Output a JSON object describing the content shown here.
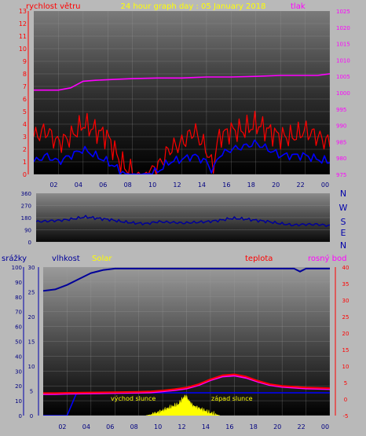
{
  "header": {
    "title": "24 hour graph day : 05 January 2018",
    "left_label": "rychlost větru",
    "right_label": "tlak"
  },
  "panel2": {
    "compass": [
      "N",
      "W",
      "S",
      "E",
      "N"
    ]
  },
  "panel3": {
    "labels": {
      "rain": "srážky",
      "humidity": "vlhkost",
      "solar": "Solar",
      "temperature": "teplota",
      "dewpoint": "rosný bod"
    },
    "sunrise_label": "východ slunce",
    "sunset_label": "západ slunce"
  },
  "colors": {
    "wind": "#ff0000",
    "wind_avg": "#0000ff",
    "pressure": "#ff00ff",
    "direction": "#000099",
    "humidity": "#000099",
    "rain": "#0000ff",
    "solar": "#ffff00",
    "temperature": "#ff0000",
    "dewpoint": "#ff00ff",
    "title": "#ffff00"
  },
  "chart_data": [
    {
      "type": "line",
      "name": "wind & pressure",
      "x_ticks": [
        "02",
        "04",
        "06",
        "08",
        "10",
        "12",
        "14",
        "16",
        "18",
        "20",
        "22",
        "00"
      ],
      "y_left": {
        "ticks": [
          "0",
          "1",
          "2",
          "3",
          "4",
          "5",
          "6",
          "7",
          "8",
          "9",
          "10",
          "11",
          "12",
          "13"
        ],
        "ylim": [
          0,
          13
        ]
      },
      "y_right": {
        "ticks": [
          "975",
          "980",
          "985",
          "990",
          "995",
          "1000",
          "1005",
          "1010",
          "1015",
          "1020",
          "1025"
        ],
        "ylim": [
          975,
          1025
        ]
      },
      "series": [
        {
          "x": [
            0,
            1,
            2,
            3,
            4,
            5,
            6,
            7,
            7.5,
            8,
            9,
            10,
            11,
            12,
            13,
            14,
            14.5,
            15,
            16,
            17,
            18,
            19,
            20,
            21,
            22,
            23,
            24
          ],
          "values": [
            3,
            3.5,
            2.5,
            3,
            4,
            3.5,
            3,
            1,
            0.5,
            0,
            0,
            0.5,
            2,
            2.5,
            3.5,
            2,
            0.5,
            3,
            3.5,
            3.5,
            4,
            3.5,
            3,
            3,
            3.5,
            3,
            2.5
          ]
        },
        {
          "x": [
            0,
            1,
            2,
            3,
            4,
            5,
            6,
            7,
            7.5,
            8,
            9,
            10,
            11,
            12,
            13,
            14,
            14.5,
            15,
            16,
            17,
            18,
            19,
            20,
            21,
            22,
            23,
            24
          ],
          "values": [
            1,
            1.5,
            1,
            1.5,
            2,
            1.5,
            1,
            0.3,
            0,
            0,
            0,
            0.2,
            1,
            1.2,
            1.5,
            1,
            0.2,
            1.5,
            2,
            2.2,
            2.5,
            2,
            1.5,
            1.5,
            1.5,
            1.2,
            1
          ]
        },
        {
          "x": [
            0,
            1,
            2,
            3,
            4,
            5,
            6,
            8,
            10,
            12,
            14,
            16,
            18,
            20,
            22,
            23,
            24
          ],
          "values": [
            1000.8,
            1000.8,
            1000.8,
            1001.5,
            1003.5,
            1003.8,
            1004,
            1004.3,
            1004.5,
            1004.5,
            1004.8,
            1004.8,
            1005,
            1005.3,
            1005.3,
            1005.3,
            1005.8
          ]
        }
      ]
    },
    {
      "type": "line",
      "name": "wind direction",
      "y_ticks": [
        "360",
        "270",
        "180",
        "90",
        "0"
      ],
      "ylim": [
        0,
        360
      ],
      "x": [
        0,
        1,
        2,
        3,
        4,
        5,
        6,
        7,
        8,
        9,
        10,
        11,
        12,
        13,
        14,
        15,
        16,
        17,
        18,
        19,
        20,
        21,
        22,
        23,
        24
      ],
      "values": [
        150,
        155,
        160,
        170,
        185,
        175,
        165,
        150,
        140,
        135,
        150,
        145,
        140,
        145,
        150,
        160,
        175,
        170,
        160,
        150,
        135,
        125,
        130,
        130,
        120
      ]
    },
    {
      "type": "line",
      "name": "humidity, rain, solar, temperature",
      "y_left": {
        "ticks": [
          "0",
          "10",
          "20",
          "30",
          "40",
          "50",
          "60",
          "70",
          "80",
          "90",
          "100"
        ],
        "ylim": [
          0,
          100
        ]
      },
      "y_mid": {
        "ticks": [
          "0",
          "5",
          "10",
          "15",
          "20",
          "25",
          "30"
        ],
        "ylim": [
          0,
          30
        ]
      },
      "y_right": {
        "ticks": [
          "-5",
          "0",
          "5",
          "10",
          "15",
          "20",
          "25",
          "30",
          "35",
          "40"
        ],
        "ylim": [
          -5,
          40
        ]
      },
      "series": [
        {
          "x": [
            0,
            1,
            2,
            3,
            4,
            5,
            6,
            7,
            8,
            10,
            12,
            14,
            16,
            18,
            20,
            21,
            21.5,
            22,
            24
          ],
          "values": [
            84,
            85,
            88,
            92,
            96,
            98,
            99,
            99,
            99,
            99,
            99,
            99,
            99,
            99,
            99,
            99,
            97,
            99,
            99
          ]
        },
        {
          "x": [
            0,
            1,
            2,
            4,
            6,
            8,
            9,
            10,
            11,
            12,
            13,
            14,
            15,
            16,
            17,
            18,
            19,
            20,
            22,
            24
          ],
          "values": [
            1.8,
            1.8,
            1.9,
            2.0,
            2.1,
            2.2,
            2.3,
            2.6,
            3.0,
            3.5,
            4.5,
            6.0,
            7.2,
            7.5,
            6.8,
            5.5,
            4.5,
            4.0,
            3.5,
            3.3
          ]
        },
        {
          "x": [
            0,
            1,
            2,
            4,
            6,
            8,
            9,
            10,
            11,
            12,
            13,
            14,
            15,
            16,
            17,
            18,
            19,
            20,
            22,
            24
          ],
          "values": [
            1.5,
            1.5,
            1.6,
            1.7,
            1.8,
            1.9,
            2.0,
            2.3,
            2.7,
            3.2,
            4.2,
            5.7,
            6.8,
            7.1,
            6.4,
            5.2,
            4.2,
            3.7,
            3.2,
            3.0
          ]
        },
        {
          "x": [
            0,
            2,
            2.8,
            3,
            21,
            21.2,
            24
          ],
          "values": [
            0,
            0,
            4.6,
            4.6,
            4.6,
            4.6,
            4.6
          ]
        },
        {
          "x": [
            8.6,
            9,
            9.5,
            10,
            10.5,
            11,
            11.3,
            11.6,
            11.9,
            12.2,
            12.5,
            13,
            13.5,
            14,
            14.5,
            14.8
          ],
          "values": [
            0,
            0.2,
            0.5,
            1,
            1.5,
            2,
            2.2,
            3.2,
            4,
            3,
            2,
            1.5,
            1,
            0.5,
            0.2,
            0
          ]
        }
      ]
    }
  ]
}
